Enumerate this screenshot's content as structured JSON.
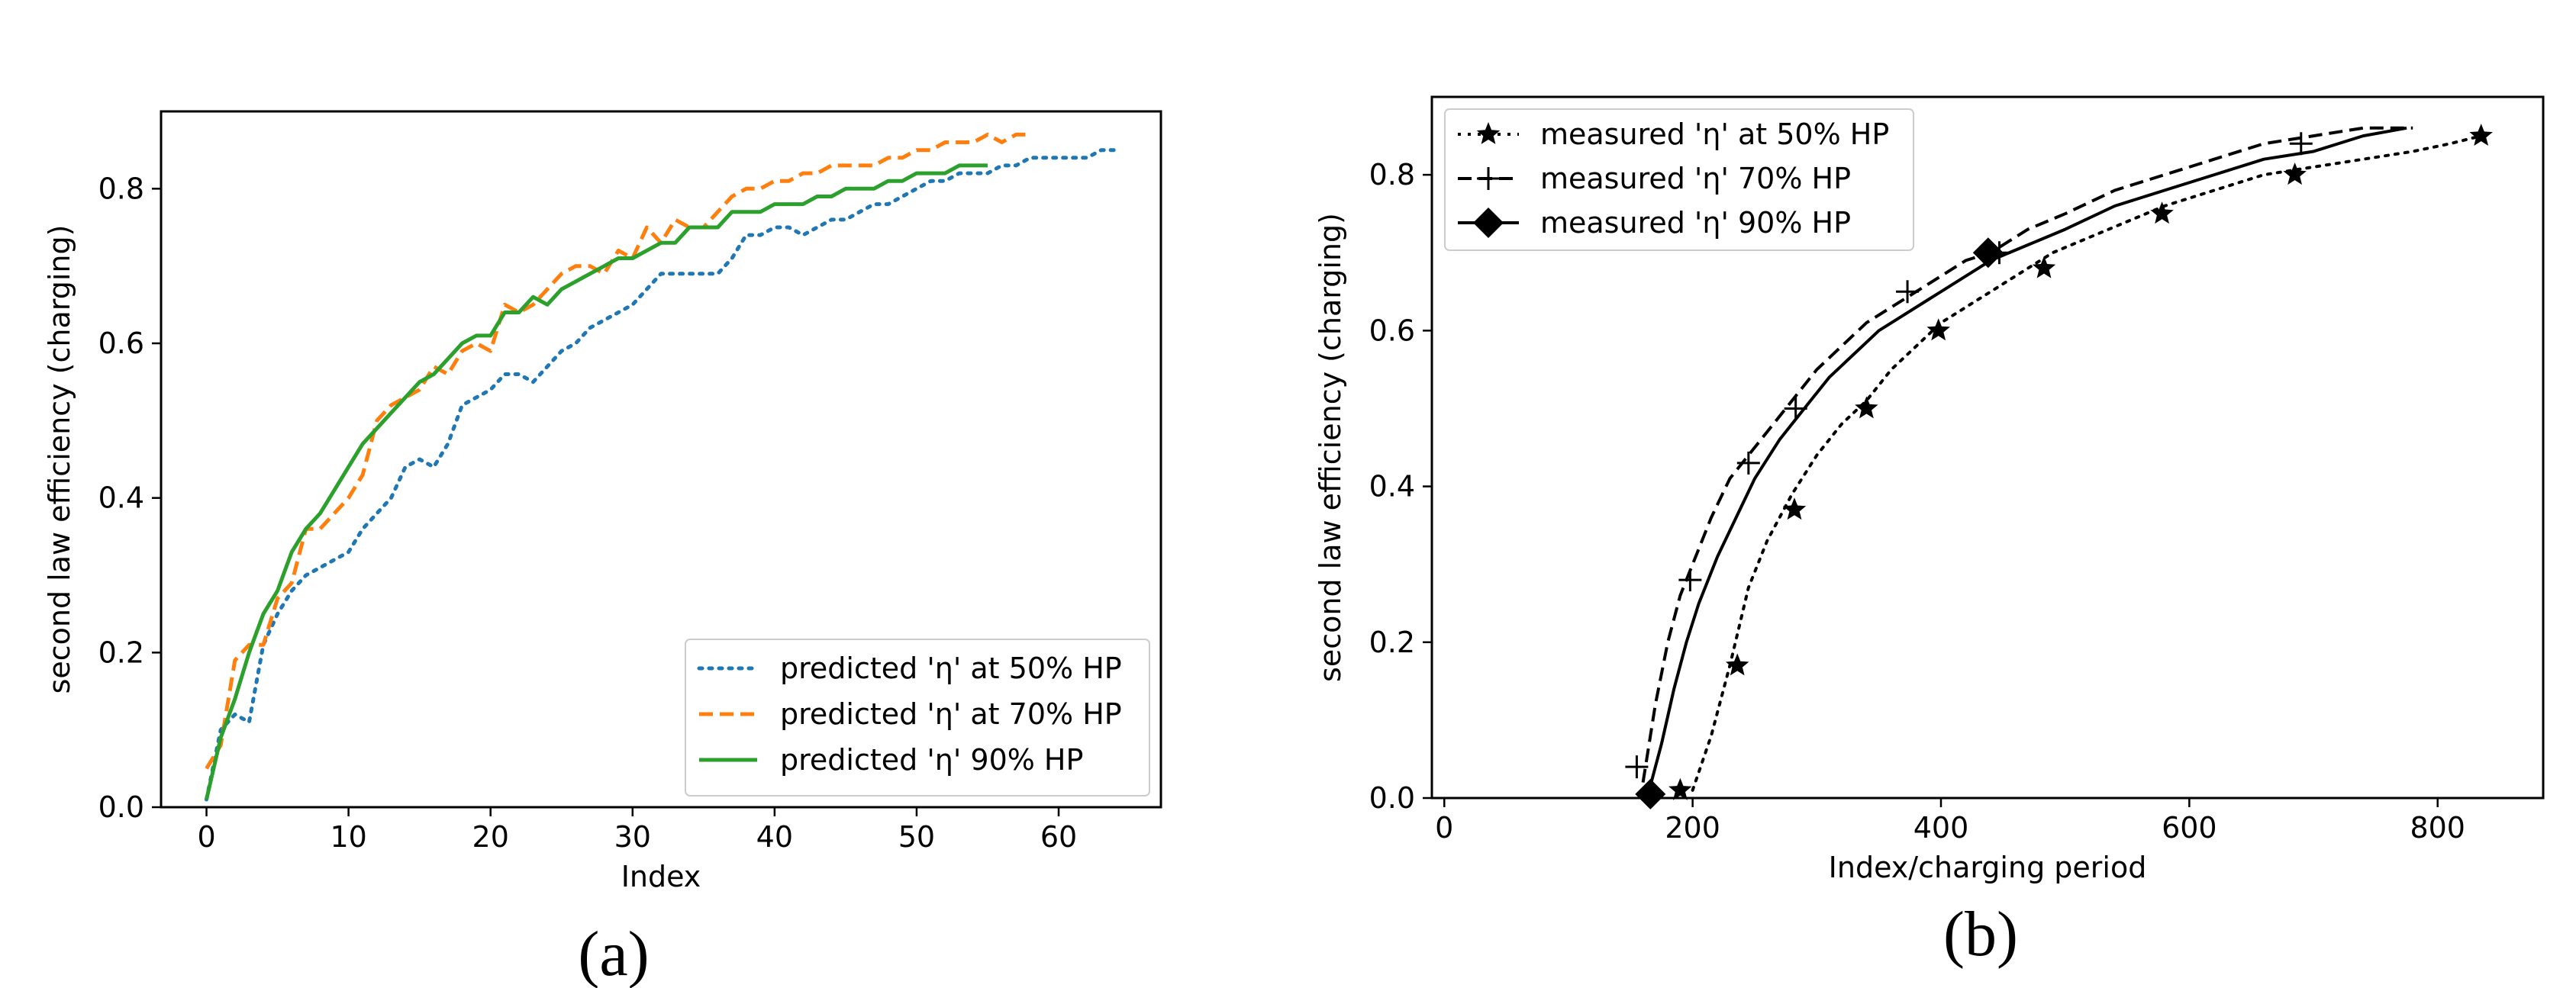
{
  "figure": {
    "captions": [
      "(a)",
      "(b)"
    ]
  },
  "chart_data": [
    {
      "type": "line",
      "panel": "(a)",
      "xlabel": "Index",
      "ylabel": "second law efficiency (charging)",
      "xlim": [
        -3.2,
        67.2
      ],
      "ylim": [
        0,
        0.9
      ],
      "xticks": [
        0,
        10,
        20,
        30,
        40,
        50,
        60
      ],
      "yticks": [
        0.0,
        0.2,
        0.4,
        0.6,
        0.8
      ],
      "grid": false,
      "legend_position": "lower-right",
      "series": [
        {
          "name": "predicted 'η' at 50% HP",
          "color": "#1f77b4",
          "style": "dotted",
          "x": [
            0,
            1,
            2,
            3,
            4,
            5,
            6,
            7,
            8,
            9,
            10,
            11,
            12,
            13,
            14,
            15,
            16,
            17,
            18,
            19,
            20,
            21,
            22,
            23,
            24,
            25,
            26,
            27,
            28,
            29,
            30,
            31,
            32,
            33,
            34,
            35,
            36,
            37,
            38,
            39,
            40,
            41,
            42,
            43,
            44,
            45,
            46,
            47,
            48,
            49,
            50,
            51,
            52,
            53,
            54,
            55,
            56,
            57,
            58,
            59,
            60,
            61,
            62,
            63,
            64
          ],
          "y": [
            0.01,
            0.1,
            0.12,
            0.11,
            0.21,
            0.25,
            0.28,
            0.3,
            0.31,
            0.32,
            0.33,
            0.36,
            0.38,
            0.4,
            0.44,
            0.45,
            0.44,
            0.47,
            0.52,
            0.53,
            0.54,
            0.56,
            0.56,
            0.55,
            0.57,
            0.59,
            0.6,
            0.62,
            0.63,
            0.64,
            0.65,
            0.67,
            0.69,
            0.69,
            0.69,
            0.69,
            0.69,
            0.71,
            0.74,
            0.74,
            0.75,
            0.75,
            0.74,
            0.75,
            0.76,
            0.76,
            0.77,
            0.78,
            0.78,
            0.79,
            0.8,
            0.81,
            0.81,
            0.82,
            0.82,
            0.82,
            0.83,
            0.83,
            0.84,
            0.84,
            0.84,
            0.84,
            0.84,
            0.85,
            0.85
          ]
        },
        {
          "name": "predicted 'η' at 70% HP",
          "color": "#ff7f0e",
          "style": "dashed",
          "x": [
            0,
            1,
            2,
            3,
            4,
            5,
            6,
            7,
            8,
            9,
            10,
            11,
            12,
            13,
            14,
            15,
            16,
            17,
            18,
            19,
            20,
            21,
            22,
            23,
            24,
            25,
            26,
            27,
            28,
            29,
            30,
            31,
            32,
            33,
            34,
            35,
            36,
            37,
            38,
            39,
            40,
            41,
            42,
            43,
            44,
            45,
            46,
            47,
            48,
            49,
            50,
            51,
            52,
            53,
            54,
            55,
            56,
            57,
            58
          ],
          "y": [
            0.05,
            0.08,
            0.19,
            0.21,
            0.21,
            0.27,
            0.29,
            0.36,
            0.36,
            0.38,
            0.4,
            0.43,
            0.5,
            0.52,
            0.53,
            0.54,
            0.57,
            0.56,
            0.59,
            0.6,
            0.59,
            0.65,
            0.64,
            0.65,
            0.67,
            0.69,
            0.7,
            0.7,
            0.69,
            0.72,
            0.71,
            0.75,
            0.73,
            0.76,
            0.75,
            0.75,
            0.77,
            0.79,
            0.8,
            0.8,
            0.81,
            0.81,
            0.82,
            0.82,
            0.83,
            0.83,
            0.83,
            0.83,
            0.84,
            0.84,
            0.85,
            0.85,
            0.86,
            0.86,
            0.86,
            0.87,
            0.86,
            0.87,
            0.87
          ]
        },
        {
          "name": "predicted 'η' 90% HP",
          "color": "#2ca02c",
          "style": "solid",
          "x": [
            0,
            1,
            2,
            3,
            4,
            5,
            6,
            7,
            8,
            9,
            10,
            11,
            12,
            13,
            14,
            15,
            16,
            17,
            18,
            19,
            20,
            21,
            22,
            23,
            24,
            25,
            26,
            27,
            28,
            29,
            30,
            31,
            32,
            33,
            34,
            35,
            36,
            37,
            38,
            39,
            40,
            41,
            42,
            43,
            44,
            45,
            46,
            47,
            48,
            49,
            50,
            51,
            52,
            53,
            54,
            55
          ],
          "y": [
            0.01,
            0.09,
            0.14,
            0.2,
            0.25,
            0.28,
            0.33,
            0.36,
            0.38,
            0.41,
            0.44,
            0.47,
            0.49,
            0.51,
            0.53,
            0.55,
            0.56,
            0.58,
            0.6,
            0.61,
            0.61,
            0.64,
            0.64,
            0.66,
            0.65,
            0.67,
            0.68,
            0.69,
            0.7,
            0.71,
            0.71,
            0.72,
            0.73,
            0.73,
            0.75,
            0.75,
            0.75,
            0.77,
            0.77,
            0.77,
            0.78,
            0.78,
            0.78,
            0.79,
            0.79,
            0.8,
            0.8,
            0.8,
            0.81,
            0.81,
            0.82,
            0.82,
            0.82,
            0.83,
            0.83,
            0.83
          ]
        }
      ]
    },
    {
      "type": "scatter",
      "panel": "(b)",
      "xlabel": "Index/charging period",
      "ylabel": "second law efficiency (charging)",
      "xlim": [
        -10,
        885
      ],
      "ylim": [
        0,
        0.9
      ],
      "xticks": [
        0,
        200,
        400,
        600,
        800
      ],
      "yticks": [
        0.0,
        0.2,
        0.4,
        0.6,
        0.8
      ],
      "grid": false,
      "legend_position": "upper-left",
      "series": [
        {
          "name": "measured 'η' at 50% HP",
          "color": "#000000",
          "style": "dotted",
          "marker": "star",
          "x": [
            200,
            215,
            230,
            245,
            260,
            280,
            300,
            320,
            340,
            360,
            380,
            400,
            430,
            460,
            490,
            520,
            550,
            580,
            620,
            660,
            700,
            740,
            780,
            810,
            835
          ],
          "y": [
            0.01,
            0.08,
            0.17,
            0.27,
            0.33,
            0.39,
            0.44,
            0.48,
            0.51,
            0.55,
            0.58,
            0.61,
            0.64,
            0.67,
            0.7,
            0.72,
            0.74,
            0.76,
            0.78,
            0.8,
            0.81,
            0.82,
            0.83,
            0.84,
            0.85
          ],
          "marker_x": [
            190,
            236,
            282,
            340,
            398,
            483,
            578,
            685,
            835
          ],
          "marker_y": [
            0.01,
            0.17,
            0.37,
            0.5,
            0.6,
            0.68,
            0.75,
            0.8,
            0.85
          ]
        },
        {
          "name": "measured 'η' 70% HP",
          "color": "#000000",
          "style": "dashed",
          "marker": "plus",
          "x": [
            160,
            170,
            180,
            190,
            200,
            215,
            230,
            245,
            260,
            280,
            300,
            320,
            340,
            360,
            380,
            400,
            420,
            440,
            470,
            500,
            540,
            580,
            620,
            660,
            700,
            740,
            780
          ],
          "y": [
            0.02,
            0.12,
            0.2,
            0.26,
            0.3,
            0.36,
            0.41,
            0.44,
            0.47,
            0.51,
            0.55,
            0.58,
            0.61,
            0.63,
            0.65,
            0.67,
            0.69,
            0.7,
            0.73,
            0.75,
            0.78,
            0.8,
            0.82,
            0.84,
            0.85,
            0.86,
            0.86
          ],
          "marker_x": [
            155,
            198,
            245,
            283,
            373,
            447,
            690
          ],
          "marker_y": [
            0.04,
            0.28,
            0.43,
            0.5,
            0.65,
            0.7,
            0.84
          ]
        },
        {
          "name": "measured 'η' 90% HP",
          "color": "#000000",
          "style": "solid",
          "marker": "diamond",
          "x": [
            165,
            175,
            185,
            195,
            205,
            220,
            235,
            250,
            270,
            290,
            310,
            330,
            350,
            370,
            390,
            410,
            440,
            470,
            500,
            540,
            580,
            620,
            660,
            700,
            740,
            775
          ],
          "y": [
            0.01,
            0.07,
            0.14,
            0.2,
            0.25,
            0.31,
            0.36,
            0.41,
            0.46,
            0.5,
            0.54,
            0.57,
            0.6,
            0.62,
            0.64,
            0.66,
            0.69,
            0.71,
            0.73,
            0.76,
            0.78,
            0.8,
            0.82,
            0.83,
            0.85,
            0.86
          ],
          "marker_x": [
            166,
            438
          ],
          "marker_y": [
            0.005,
            0.7
          ]
        }
      ]
    }
  ]
}
